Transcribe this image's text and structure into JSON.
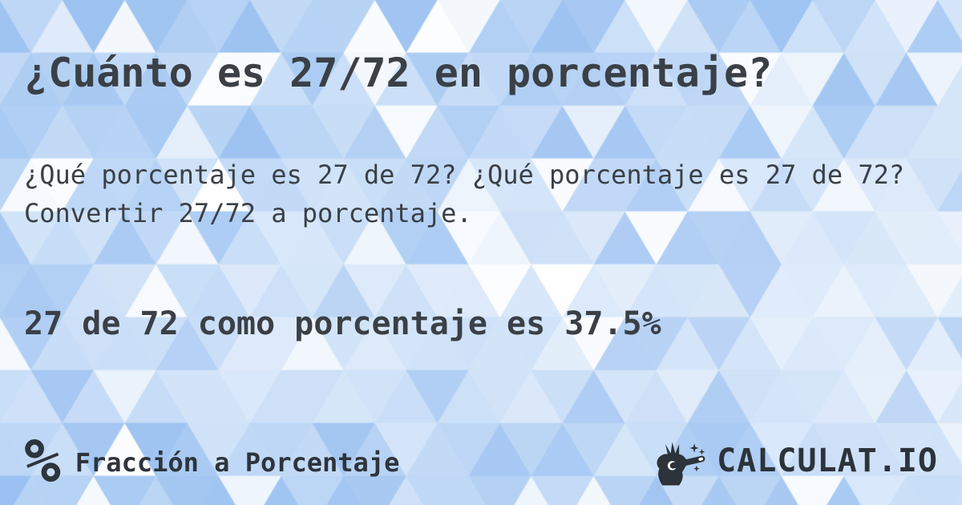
{
  "page": {
    "title": "¿Cuánto es 27/72 en porcentaje?",
    "subtitle": "¿Qué porcentaje es 27 de 72? ¿Qué porcentaje es 27 de 72? Convertir 27/72 a porcentaje.",
    "answer": "27 de 72 como porcentaje es 37.5%"
  },
  "footer": {
    "category_icon": "%",
    "category_label": "Fracción a Porcentaje",
    "logo_icon": "hand-magic-wand-icon",
    "logo_text": "CALCULAT.IO"
  },
  "colors": {
    "text_dark": "#3a4046",
    "logo_dark": "#2c333a",
    "bg_blue": "#9fc4f1",
    "bg_deep_blue": "#8ab6ef",
    "bg_white": "#ffffff"
  },
  "background": {
    "pattern": "triangle-mosaic",
    "triangle_width": 78,
    "triangle_height": 66
  }
}
